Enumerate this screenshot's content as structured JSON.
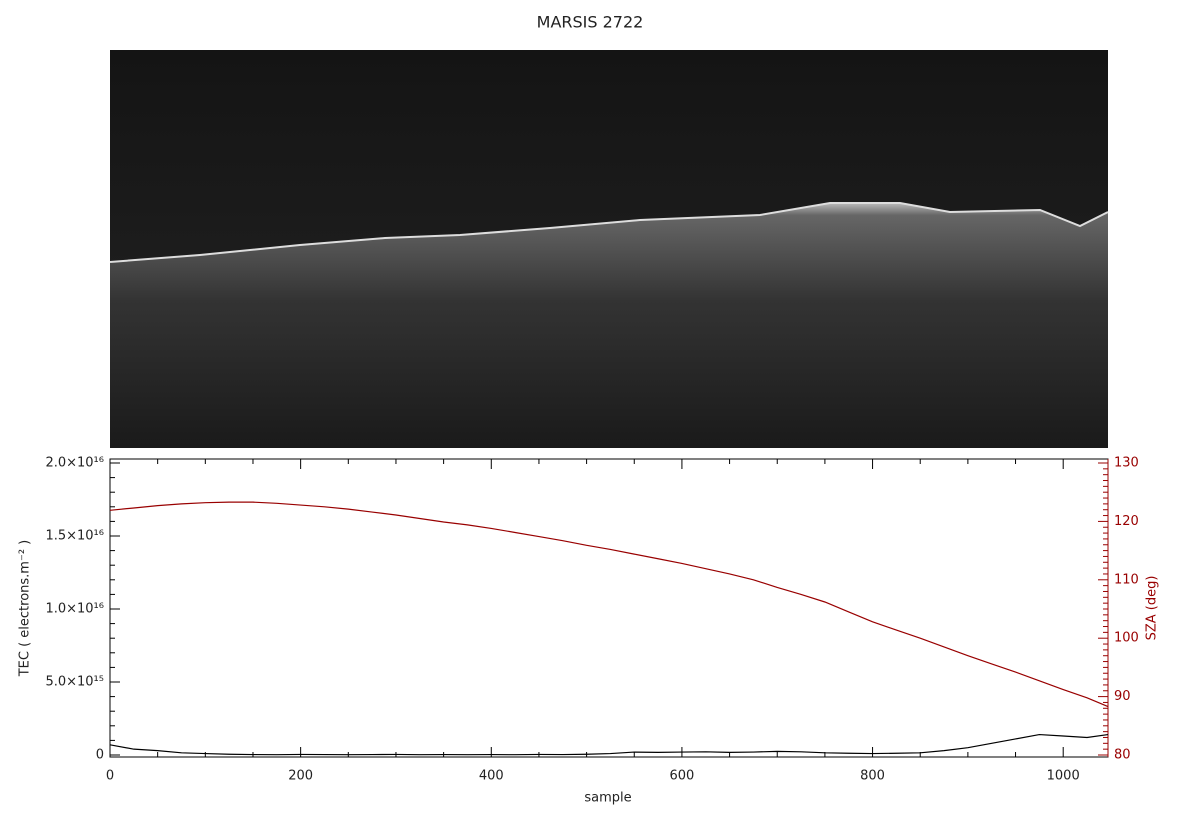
{
  "chart_data": {
    "type": "line",
    "title": "MARSIS 2722",
    "x_label": "sample",
    "y_label": "TEC ( electrons.m⁻² )",
    "y2_label": "SZA (deg)",
    "xlim": [
      0,
      1047
    ],
    "xticks": [
      0,
      200,
      400,
      600,
      800,
      1000
    ],
    "ylim": [
      0,
      2e+16
    ],
    "yticks": [
      0,
      {
        "value": 5000000000000000.0,
        "label": "5.0×10¹⁵"
      },
      {
        "value": 1e+16,
        "label": "1.0×10¹⁶"
      },
      {
        "value": 1.5e+16,
        "label": "1.5×10¹⁶"
      },
      {
        "value": 2e+16,
        "label": "2.0×10¹⁶"
      }
    ],
    "y2lim": [
      80,
      130
    ],
    "y2ticks": [
      80,
      90,
      100,
      110,
      120,
      130
    ],
    "y2_color": "#990000",
    "x": [
      0,
      25,
      50,
      75,
      100,
      125,
      150,
      175,
      200,
      225,
      250,
      275,
      300,
      325,
      350,
      375,
      400,
      425,
      450,
      475,
      500,
      525,
      550,
      575,
      600,
      625,
      650,
      675,
      700,
      725,
      750,
      775,
      800,
      825,
      850,
      875,
      900,
      925,
      950,
      975,
      1000,
      1025,
      1047
    ],
    "series": [
      {
        "name": "TEC",
        "color": "#000000",
        "axis": "y",
        "values": [
          700000000000000.0,
          400000000000000.0,
          300000000000000.0,
          150000000000000.0,
          100000000000000.0,
          50000000000000.0,
          30000000000000.0,
          20000000000000.0,
          40000000000000.0,
          30000000000000.0,
          20000000000000.0,
          30000000000000.0,
          40000000000000.0,
          20000000000000.0,
          30000000000000.0,
          20000000000000.0,
          30000000000000.0,
          20000000000000.0,
          40000000000000.0,
          30000000000000.0,
          50000000000000.0,
          100000000000000.0,
          200000000000000.0,
          180000000000000.0,
          200000000000000.0,
          220000000000000.0,
          180000000000000.0,
          200000000000000.0,
          250000000000000.0,
          220000000000000.0,
          150000000000000.0,
          120000000000000.0,
          100000000000000.0,
          120000000000000.0,
          150000000000000.0,
          300000000000000.0,
          500000000000000.0,
          800000000000000.0,
          1100000000000000.0,
          1400000000000000.0,
          1300000000000000.0,
          1200000000000000.0,
          1400000000000000.0
        ]
      },
      {
        "name": "SZA",
        "color": "#990000",
        "axis": "y2",
        "values": [
          121.9,
          122.3,
          122.7,
          123.0,
          123.2,
          123.3,
          123.3,
          123.1,
          122.8,
          122.5,
          122.1,
          121.6,
          121.1,
          120.5,
          119.9,
          119.4,
          118.8,
          118.1,
          117.4,
          116.7,
          115.9,
          115.2,
          114.4,
          113.6,
          112.8,
          111.9,
          111.0,
          110.0,
          108.7,
          107.5,
          106.2,
          104.5,
          102.8,
          101.4,
          100.0,
          98.5,
          97.0,
          95.6,
          94.2,
          92.7,
          91.2,
          89.8,
          88.3
        ]
      }
    ]
  }
}
